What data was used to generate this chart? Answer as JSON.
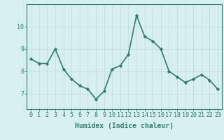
{
  "x": [
    0,
    1,
    2,
    3,
    4,
    5,
    6,
    7,
    8,
    9,
    10,
    11,
    12,
    13,
    14,
    15,
    16,
    17,
    18,
    19,
    20,
    21,
    22,
    23
  ],
  "y": [
    8.55,
    8.35,
    8.35,
    9.0,
    8.1,
    7.65,
    7.35,
    7.2,
    6.75,
    7.1,
    8.1,
    8.25,
    8.75,
    10.5,
    9.55,
    9.35,
    9.0,
    8.0,
    7.75,
    7.5,
    7.65,
    7.85,
    7.6,
    7.2
  ],
  "line_color": "#2e7d6e",
  "marker": "D",
  "markersize": 2.2,
  "linewidth": 1.2,
  "bg_color": "#d8eff0",
  "grid_color": "#c5dfe0",
  "xlabel": "Humidex (Indice chaleur)",
  "xlabel_fontsize": 7,
  "tick_fontsize": 6,
  "yticks": [
    7,
    8,
    9,
    10
  ],
  "ylim": [
    6.3,
    11.0
  ],
  "xlim": [
    -0.5,
    23.5
  ]
}
